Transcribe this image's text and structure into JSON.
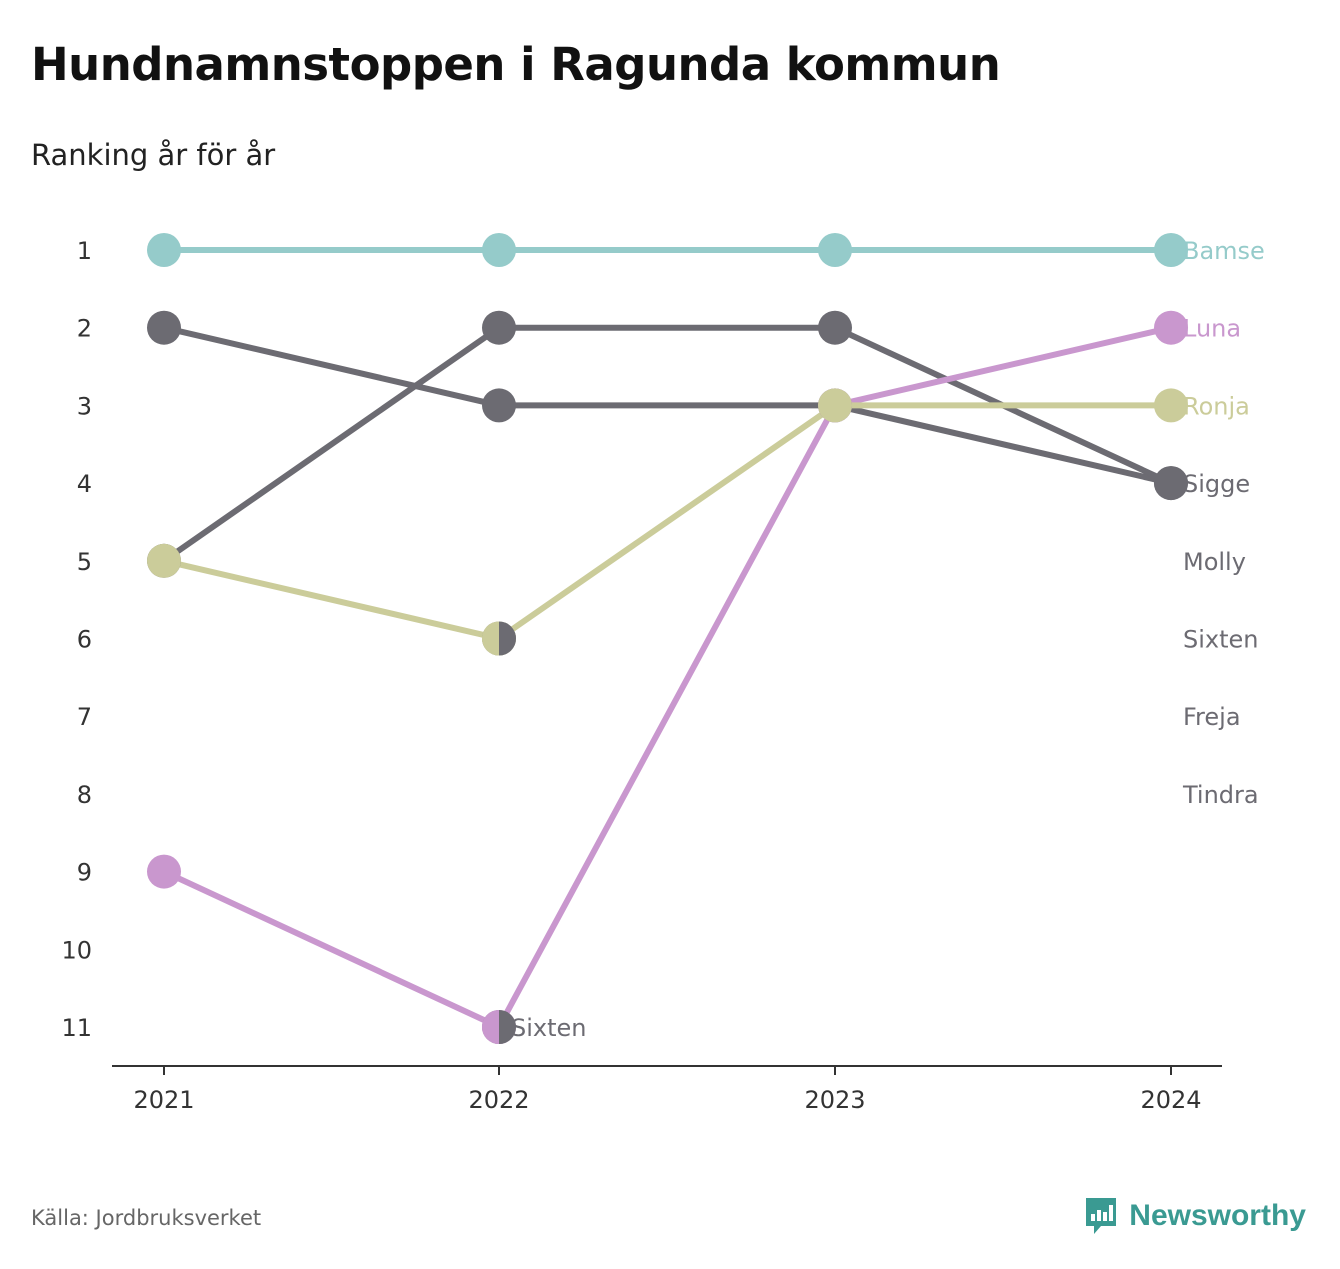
{
  "header": {
    "title": "Hundnamnstoppen i Ragunda kommun",
    "subtitle": "Ranking år för år"
  },
  "footer": {
    "source": "Källa: Jordbruksverket",
    "brand": "Newsworthy",
    "brand_icon": "newsworthy-logo-icon"
  },
  "colors": {
    "Bamse": "#95cbca",
    "Luna": "#c997ce",
    "Ronja": "#cbcc9a",
    "grey": "#6c6b72",
    "axis": "#333333",
    "tick_text": "#333333"
  },
  "chart_data": {
    "type": "line",
    "title": "Hundnamnstoppen i Ragunda kommun",
    "subtitle": "Ranking år för år",
    "x": [
      "2021",
      "2022",
      "2023",
      "2024"
    ],
    "y_ticks": [
      1,
      2,
      3,
      4,
      5,
      6,
      7,
      8,
      9,
      10,
      11
    ],
    "y_inverted": true,
    "ylim": [
      1,
      11
    ],
    "grid": false,
    "series": [
      {
        "name": "Bamse",
        "values": [
          1,
          1,
          1,
          1
        ],
        "highlight": true
      },
      {
        "name": "Luna",
        "values": [
          9,
          11,
          3,
          2
        ],
        "highlight": true
      },
      {
        "name": "Ronja",
        "values": [
          5,
          6,
          3,
          3
        ],
        "highlight": true
      },
      {
        "name": "Sigge",
        "values": [
          2,
          3,
          3,
          4
        ],
        "highlight": false
      },
      {
        "name": "Molly",
        "values": [
          5,
          2,
          2,
          4
        ],
        "highlight": false
      },
      {
        "name": "Sixten",
        "values": [
          null,
          11,
          null,
          null
        ],
        "highlight": false
      },
      {
        "name": "Freja",
        "values": [
          null,
          6,
          null,
          null
        ],
        "highlight": false
      },
      {
        "name": "Tindra",
        "values": [
          null,
          null,
          null,
          null
        ],
        "highlight": false
      }
    ],
    "end_labels": [
      "Bamse",
      "Luna",
      "Ronja",
      "Sigge",
      "Molly",
      "Sixten",
      "Freja",
      "Tindra"
    ],
    "annotations": [
      {
        "text": "Sixten",
        "x": "2022",
        "y": 11
      }
    ]
  }
}
